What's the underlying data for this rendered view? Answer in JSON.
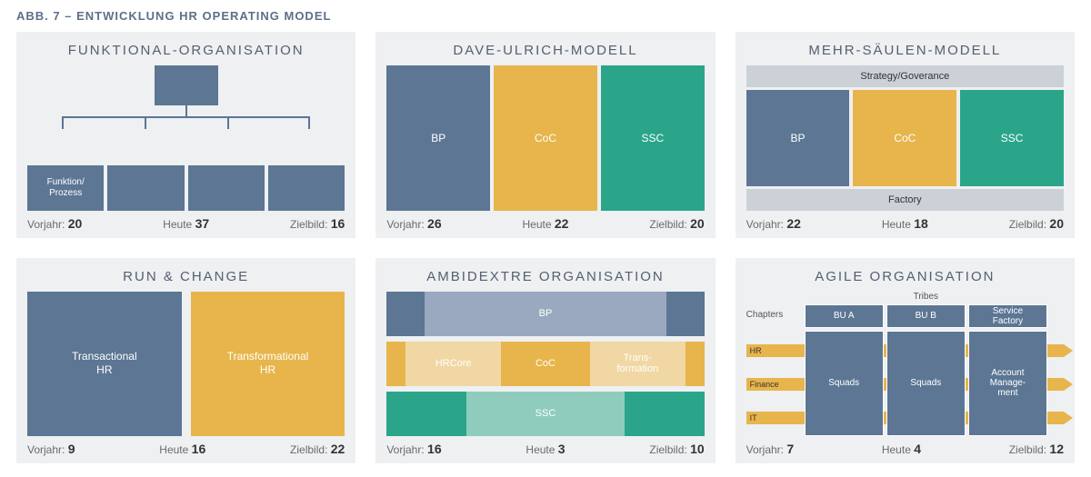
{
  "title": "ABB. 7 – ENTWICKLUNG HR OPERATING MODEL",
  "colors": {
    "blue": "#5c7694",
    "blue_light": "#9aa9bf",
    "yellow": "#e7b54b",
    "yellow_light": "#f0d7a3",
    "green": "#2aa58a",
    "green_light": "#8fccbd",
    "panel_bg": "#eef0f2",
    "gray_box": "#ccd1d8"
  },
  "stat_labels": {
    "prev": "Vorjahr:",
    "now": "Heute",
    "target": "Zielbild:"
  },
  "panels": [
    {
      "key": "funktional",
      "title": "FUNKTIONAL-ORGANISATION",
      "child_label": "Funktion/\nProzess",
      "stats": {
        "prev": "20",
        "now": "37",
        "target": "16"
      }
    },
    {
      "key": "ulrich",
      "title": "DAVE-ULRICH-MODELL",
      "cols": [
        {
          "label": "BP",
          "color": "#5c7694"
        },
        {
          "label": "CoC",
          "color": "#e7b54b"
        },
        {
          "label": "SSC",
          "color": "#2aa58a"
        }
      ],
      "stats": {
        "prev": "26",
        "now": "22",
        "target": "20"
      }
    },
    {
      "key": "msm",
      "title": "MEHR-SÄULEN-MODELL",
      "top": "Strategy/Goverance",
      "bottom": "Factory",
      "cols": [
        {
          "label": "BP",
          "color": "#5c7694"
        },
        {
          "label": "CoC",
          "color": "#e7b54b"
        },
        {
          "label": "SSC",
          "color": "#2aa58a"
        }
      ],
      "stats": {
        "prev": "22",
        "now": "18",
        "target": "20"
      }
    },
    {
      "key": "runchange",
      "title": "RUN & CHANGE",
      "boxes": [
        {
          "label": "Transactional\nHR",
          "color": "#5c7694"
        },
        {
          "label": "Transformational\nHR",
          "color": "#e7b54b"
        }
      ],
      "stats": {
        "prev": "9",
        "now": "16",
        "target": "22"
      }
    },
    {
      "key": "ambidextre",
      "title": "AMBIDEXTRE ORGANISATION",
      "rows": [
        {
          "segs": [
            {
              "w": 0.12,
              "color": "#5c7694",
              "label": ""
            },
            {
              "w": 0.76,
              "color": "#9aa9bf",
              "label": "BP"
            },
            {
              "w": 0.12,
              "color": "#5c7694",
              "label": ""
            }
          ]
        },
        {
          "segs": [
            {
              "w": 0.06,
              "color": "#e7b54b",
              "label": ""
            },
            {
              "w": 0.3,
              "color": "#f0d7a3",
              "label": "HRCore"
            },
            {
              "w": 0.28,
              "color": "#e7b54b",
              "label": "CoC"
            },
            {
              "w": 0.3,
              "color": "#f0d7a3",
              "label": "Trans-\nformation"
            },
            {
              "w": 0.06,
              "color": "#e7b54b",
              "label": ""
            }
          ]
        },
        {
          "segs": [
            {
              "w": 0.25,
              "color": "#2aa58a",
              "label": ""
            },
            {
              "w": 0.5,
              "color": "#8fccbd",
              "label": "SSC"
            },
            {
              "w": 0.25,
              "color": "#2aa58a",
              "label": ""
            }
          ]
        }
      ],
      "stats": {
        "prev": "16",
        "now": "3",
        "target": "10"
      }
    },
    {
      "key": "agile",
      "title": "AGILE ORGANISATION",
      "tribes_label": "Tribes",
      "chapters_label": "Chapters",
      "head": [
        "BU A",
        "BU B",
        "Service\nFactory"
      ],
      "body": [
        "Squads",
        "Squads",
        "Account\nManage-\nment"
      ],
      "chapter_bars": [
        {
          "label": "HR",
          "color": "#e7b54b"
        },
        {
          "label": "Finance",
          "color": "#e7b54b"
        },
        {
          "label": "IT",
          "color": "#e7b54b"
        }
      ],
      "stats": {
        "prev": "7",
        "now": "4",
        "target": "12"
      }
    }
  ]
}
